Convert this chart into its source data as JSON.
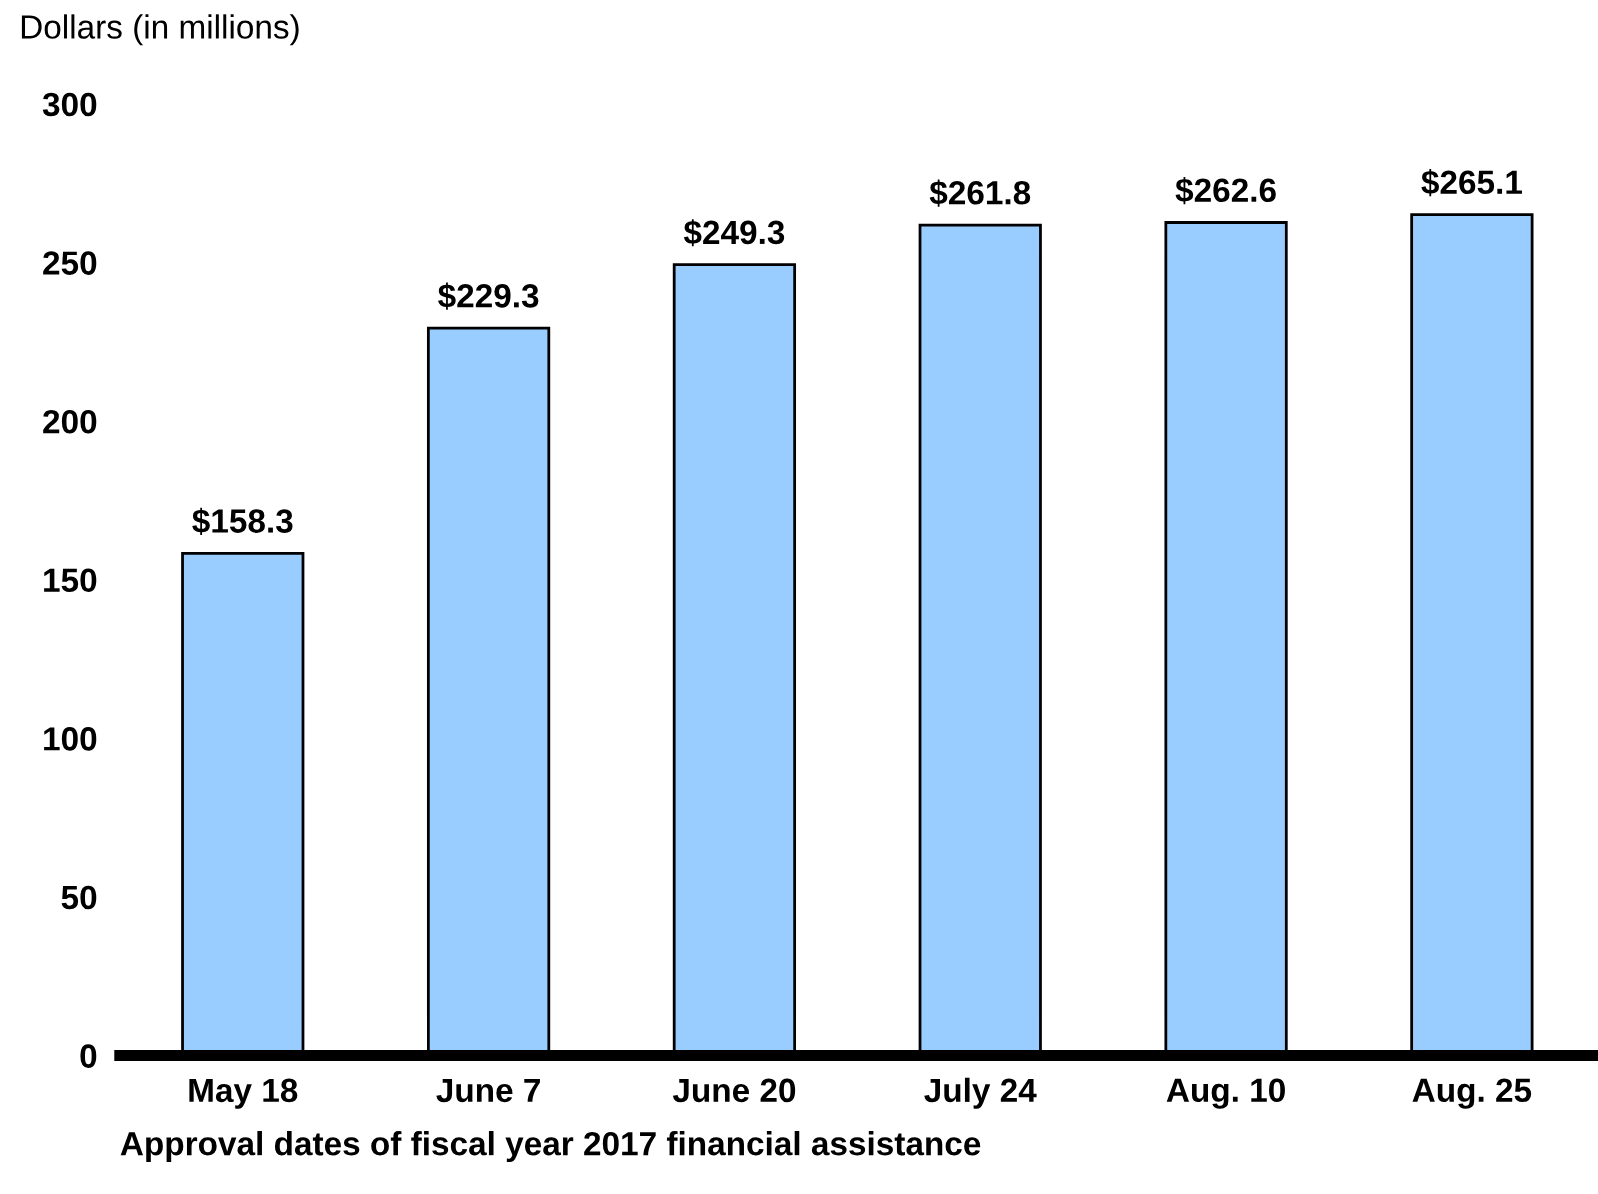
{
  "chart_data": {
    "type": "bar",
    "ylabel": "Dollars (in millions)",
    "xlabel": "Approval dates of fiscal year 2017 financial assistance",
    "categories": [
      "May 18",
      "June 7",
      "June 20",
      "July 24",
      "Aug. 10",
      "Aug. 25"
    ],
    "values": [
      158.3,
      229.3,
      249.3,
      261.8,
      262.6,
      265.1
    ],
    "value_labels": [
      "$158.3",
      "$229.3",
      "$249.3",
      "$261.8",
      "$262.6",
      "$265.1"
    ],
    "color": "#99ccff",
    "ylim": [
      0,
      300
    ],
    "yticks": [
      0,
      50,
      100,
      150,
      200,
      250,
      300
    ],
    "grid": false,
    "legend": false
  }
}
